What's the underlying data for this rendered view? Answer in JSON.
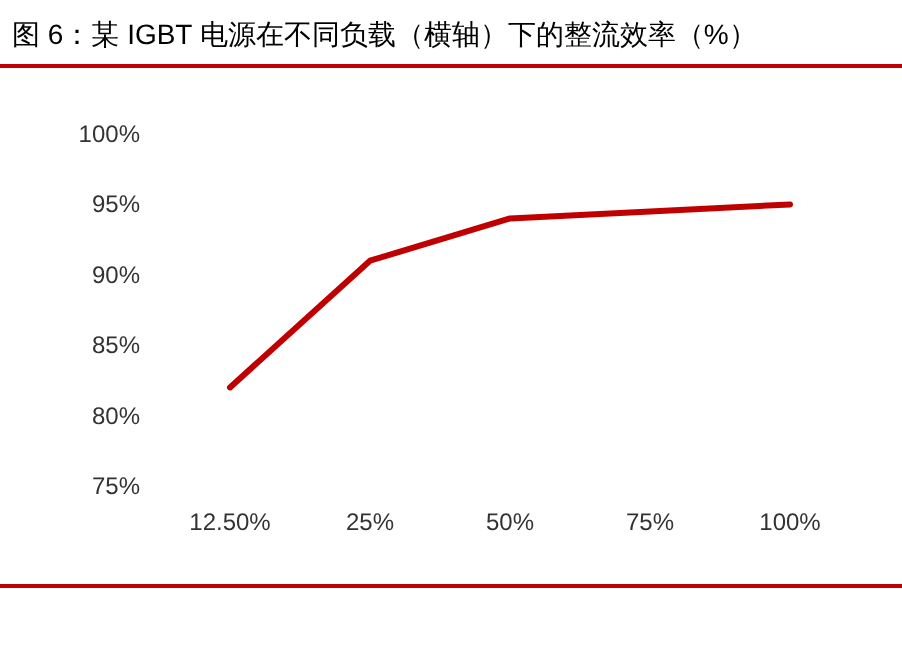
{
  "chart_data": {
    "type": "line",
    "title": "图 6：某 IGBT 电源在不同负载（横轴）下的整流效率（%）",
    "categories": [
      "12.50%",
      "25%",
      "50%",
      "75%",
      "100%"
    ],
    "series": [
      {
        "color": "#c00000",
        "values": [
          82,
          91,
          94,
          94.5,
          95
        ]
      }
    ],
    "ylim": [
      75,
      100
    ],
    "yticks": [
      {
        "value": 75,
        "label": "75%"
      },
      {
        "value": 80,
        "label": "80%"
      },
      {
        "value": 85,
        "label": "85%"
      },
      {
        "value": 90,
        "label": "90%"
      },
      {
        "value": 95,
        "label": "95%"
      },
      {
        "value": 100,
        "label": "100%"
      }
    ],
    "grid": false,
    "marker": "none",
    "line_style": "solid"
  }
}
